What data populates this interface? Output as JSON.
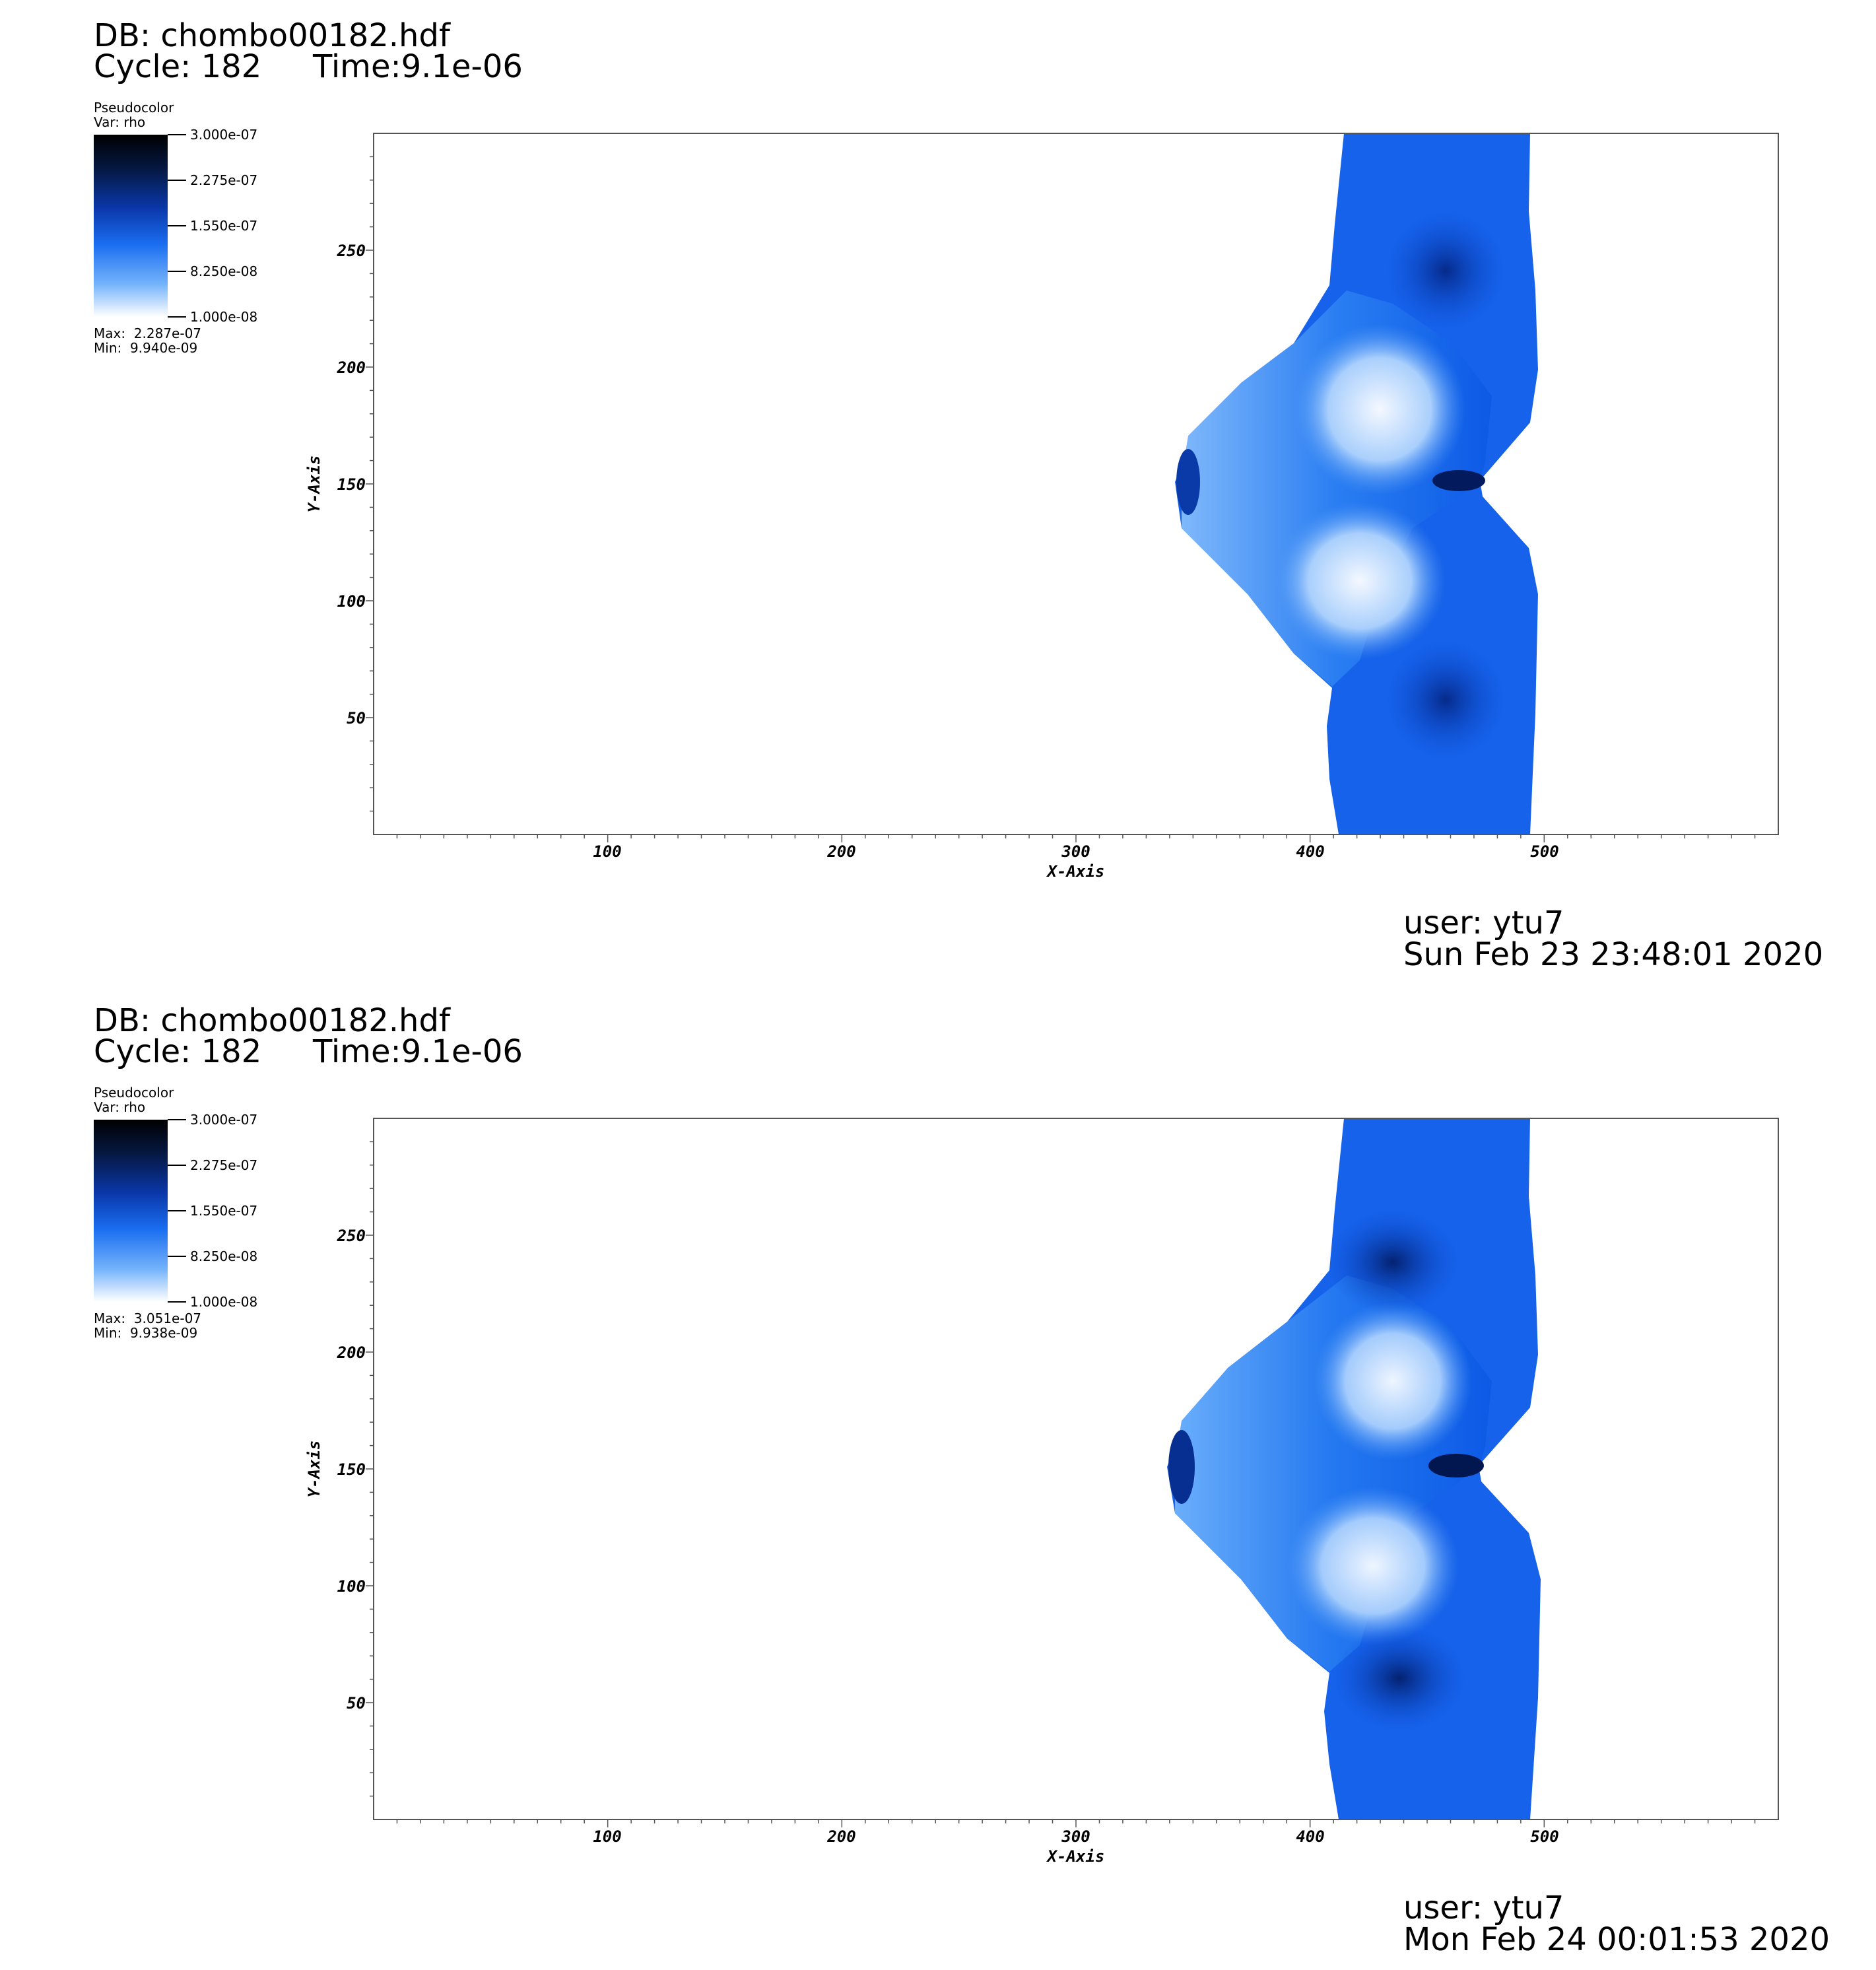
{
  "chart_data": [
    {
      "type": "heatmap",
      "header": {
        "db": "DB: chombo00182.hdf",
        "cycle": "Cycle: 182",
        "time": "Time:9.1e-06"
      },
      "legend": {
        "title": "Pseudocolor",
        "var": "Var: rho",
        "ticks": [
          "3.000e-07",
          "2.275e-07",
          "1.550e-07",
          "8.250e-08",
          "1.000e-08"
        ],
        "max": "Max:  2.287e-07",
        "min": "Min:  9.940e-09",
        "colors": [
          "#000000",
          "#0a37a8",
          "#1a6df0",
          "#ffffff"
        ]
      },
      "xlabel": "X-Axis",
      "ylabel": "Y-Axis",
      "xlim": [
        0,
        600
      ],
      "ylim": [
        0,
        300
      ],
      "xticks": [
        "100",
        "200",
        "300",
        "400",
        "500"
      ],
      "yticks": [
        "50",
        "100",
        "150",
        "200",
        "250"
      ],
      "user": "user: ytu7",
      "date": "Sun Feb 23 23:48:01 2020"
    },
    {
      "type": "heatmap",
      "header": {
        "db": "DB: chombo00182.hdf",
        "cycle": "Cycle: 182",
        "time": "Time:9.1e-06"
      },
      "legend": {
        "title": "Pseudocolor",
        "var": "Var: rho",
        "ticks": [
          "3.000e-07",
          "2.275e-07",
          "1.550e-07",
          "8.250e-08",
          "1.000e-08"
        ],
        "max": "Max:  3.051e-07",
        "min": "Min:  9.938e-09",
        "colors": [
          "#000000",
          "#0a37a8",
          "#1a6df0",
          "#ffffff"
        ]
      },
      "xlabel": "X-Axis",
      "ylabel": "Y-Axis",
      "xlim": [
        0,
        600
      ],
      "ylim": [
        0,
        300
      ],
      "xticks": [
        "100",
        "200",
        "300",
        "400",
        "500"
      ],
      "yticks": [
        "50",
        "100",
        "150",
        "200",
        "250"
      ],
      "user": "user: ytu7",
      "date": "Mon Feb 24 00:01:53 2020"
    }
  ]
}
